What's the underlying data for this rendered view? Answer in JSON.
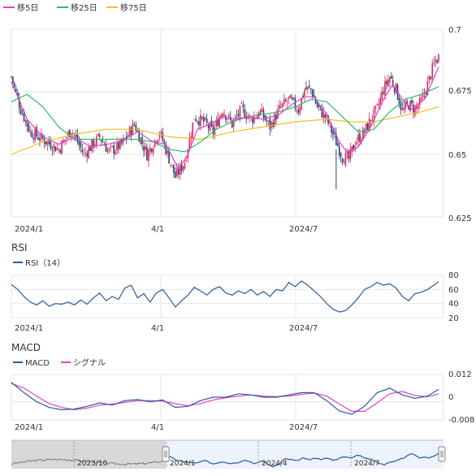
{
  "colors": {
    "up": "#e8245c",
    "down": "#2a3f6e",
    "ma5": "#e040c8",
    "ma25": "#2bbf6a",
    "ma75": "#f0c020",
    "rsi": "#2a5a9e",
    "macd": "#2a5a9e",
    "signal": "#e040c8",
    "grid": "#e6e6e6",
    "navigator_bg": "#d8d8d8",
    "navigator_selected": "#eef2fa"
  },
  "legend": [
    {
      "label": "移5日",
      "color": "#e040c8"
    },
    {
      "label": "移25日",
      "color": "#2bbf6a"
    },
    {
      "label": "移75日",
      "color": "#f0c020"
    }
  ],
  "price": {
    "y_ticks": [
      "0.7",
      "0.675",
      "0.65",
      "0.625"
    ],
    "x_ticks": [
      "2024/1",
      "4/1",
      "2024/7"
    ]
  },
  "rsi": {
    "title": "RSI",
    "legend_label": "RSI（14）",
    "y_ticks": [
      "80",
      "60",
      "40",
      "20"
    ],
    "x_ticks": [
      "2024/1",
      "4/1",
      "2024/7"
    ]
  },
  "macd": {
    "title": "MACD",
    "legend_macd": "MACD",
    "legend_signal": "シグナル",
    "y_ticks": [
      "0.012",
      "0",
      "-0.008"
    ],
    "x_ticks": [
      "2024/1",
      "4/1",
      "2024/7"
    ]
  },
  "navigator": {
    "labels": [
      "2023/10",
      "2024/1",
      "2024/4",
      "2024/7"
    ]
  },
  "chart_data": [
    {
      "type": "candlestick",
      "ylim": [
        0.625,
        0.7
      ],
      "y_ticks": [
        0.7,
        0.675,
        0.65,
        0.625
      ],
      "x_tick_labels": [
        "2024/1",
        "4/1",
        "2024/7"
      ],
      "close_path": [
        [
          0,
          0.681
        ],
        [
          6,
          0.668
        ],
        [
          12,
          0.659
        ],
        [
          20,
          0.656
        ],
        [
          30,
          0.652
        ],
        [
          38,
          0.66
        ],
        [
          46,
          0.65
        ],
        [
          56,
          0.657
        ],
        [
          62,
          0.651
        ],
        [
          70,
          0.654
        ],
        [
          78,
          0.662
        ],
        [
          86,
          0.65
        ],
        [
          94,
          0.659
        ],
        [
          98,
          0.652
        ],
        [
          104,
          0.641
        ],
        [
          110,
          0.647
        ],
        [
          116,
          0.665
        ],
        [
          122,
          0.663
        ],
        [
          128,
          0.659
        ],
        [
          134,
          0.668
        ],
        [
          140,
          0.662
        ],
        [
          146,
          0.668
        ],
        [
          152,
          0.664
        ],
        [
          158,
          0.667
        ],
        [
          164,
          0.661
        ],
        [
          170,
          0.668
        ],
        [
          176,
          0.672
        ],
        [
          182,
          0.668
        ],
        [
          186,
          0.676
        ],
        [
          190,
          0.676
        ],
        [
          194,
          0.669
        ],
        [
          200,
          0.664
        ],
        [
          206,
          0.655
        ],
        [
          210,
          0.649
        ],
        [
          214,
          0.648
        ],
        [
          218,
          0.655
        ],
        [
          224,
          0.659
        ],
        [
          228,
          0.664
        ],
        [
          232,
          0.668
        ],
        [
          236,
          0.676
        ],
        [
          240,
          0.681
        ],
        [
          244,
          0.676
        ],
        [
          248,
          0.667
        ],
        [
          252,
          0.67
        ],
        [
          256,
          0.668
        ],
        [
          260,
          0.671
        ],
        [
          264,
          0.678
        ],
        [
          268,
          0.686
        ],
        [
          271,
          0.689
        ]
      ],
      "ma5_path": [
        [
          0,
          0.679
        ],
        [
          10,
          0.664
        ],
        [
          20,
          0.657
        ],
        [
          30,
          0.654
        ],
        [
          40,
          0.657
        ],
        [
          50,
          0.653
        ],
        [
          60,
          0.654
        ],
        [
          70,
          0.655
        ],
        [
          80,
          0.659
        ],
        [
          90,
          0.655
        ],
        [
          98,
          0.654
        ],
        [
          106,
          0.644
        ],
        [
          112,
          0.65
        ],
        [
          118,
          0.66
        ],
        [
          126,
          0.662
        ],
        [
          134,
          0.665
        ],
        [
          142,
          0.664
        ],
        [
          150,
          0.665
        ],
        [
          160,
          0.664
        ],
        [
          170,
          0.666
        ],
        [
          178,
          0.67
        ],
        [
          186,
          0.673
        ],
        [
          192,
          0.673
        ],
        [
          200,
          0.666
        ],
        [
          208,
          0.655
        ],
        [
          214,
          0.65
        ],
        [
          220,
          0.653
        ],
        [
          228,
          0.661
        ],
        [
          236,
          0.672
        ],
        [
          242,
          0.678
        ],
        [
          248,
          0.672
        ],
        [
          254,
          0.668
        ],
        [
          262,
          0.672
        ],
        [
          271,
          0.685
        ]
      ],
      "ma25_path": [
        [
          0,
          0.671
        ],
        [
          10,
          0.674
        ],
        [
          20,
          0.669
        ],
        [
          30,
          0.661
        ],
        [
          40,
          0.656
        ],
        [
          50,
          0.656
        ],
        [
          60,
          0.656
        ],
        [
          70,
          0.656
        ],
        [
          80,
          0.656
        ],
        [
          90,
          0.655
        ],
        [
          100,
          0.652
        ],
        [
          110,
          0.651
        ],
        [
          120,
          0.655
        ],
        [
          130,
          0.66
        ],
        [
          140,
          0.663
        ],
        [
          150,
          0.665
        ],
        [
          160,
          0.666
        ],
        [
          170,
          0.667
        ],
        [
          180,
          0.669
        ],
        [
          190,
          0.672
        ],
        [
          200,
          0.671
        ],
        [
          210,
          0.665
        ],
        [
          220,
          0.659
        ],
        [
          230,
          0.66
        ],
        [
          240,
          0.667
        ],
        [
          250,
          0.672
        ],
        [
          260,
          0.674
        ],
        [
          271,
          0.677
        ]
      ],
      "ma75_path": [
        [
          0,
          0.65
        ],
        [
          20,
          0.655
        ],
        [
          40,
          0.658
        ],
        [
          60,
          0.66
        ],
        [
          80,
          0.66
        ],
        [
          100,
          0.657
        ],
        [
          120,
          0.656
        ],
        [
          140,
          0.659
        ],
        [
          160,
          0.661
        ],
        [
          180,
          0.663
        ],
        [
          200,
          0.664
        ],
        [
          215,
          0.663
        ],
        [
          230,
          0.663
        ],
        [
          245,
          0.665
        ],
        [
          260,
          0.667
        ],
        [
          271,
          0.669
        ]
      ]
    },
    {
      "type": "line",
      "ylim": [
        20,
        80
      ],
      "y_ticks": [
        80,
        60,
        40,
        20
      ],
      "x_tick_labels": [
        "2024/1",
        "4/1",
        "2024/7"
      ],
      "series": [
        {
          "name": "RSI（14）",
          "values": [
            [
              0,
              67
            ],
            [
              4,
              60
            ],
            [
              8,
              50
            ],
            [
              12,
              42
            ],
            [
              16,
              38
            ],
            [
              20,
              44
            ],
            [
              24,
              36
            ],
            [
              28,
              40
            ],
            [
              32,
              39
            ],
            [
              36,
              42
            ],
            [
              40,
              38
            ],
            [
              44,
              45
            ],
            [
              48,
              39
            ],
            [
              52,
              48
            ],
            [
              56,
              55
            ],
            [
              60,
              44
            ],
            [
              64,
              50
            ],
            [
              68,
              46
            ],
            [
              72,
              62
            ],
            [
              76,
              66
            ],
            [
              80,
              48
            ],
            [
              84,
              54
            ],
            [
              88,
              42
            ],
            [
              92,
              55
            ],
            [
              96,
              60
            ],
            [
              100,
              48
            ],
            [
              104,
              35
            ],
            [
              108,
              44
            ],
            [
              112,
              52
            ],
            [
              116,
              63
            ],
            [
              120,
              58
            ],
            [
              124,
              52
            ],
            [
              128,
              60
            ],
            [
              132,
              64
            ],
            [
              136,
              55
            ],
            [
              140,
              52
            ],
            [
              144,
              58
            ],
            [
              148,
              54
            ],
            [
              152,
              60
            ],
            [
              156,
              52
            ],
            [
              160,
              57
            ],
            [
              164,
              50
            ],
            [
              168,
              60
            ],
            [
              172,
              58
            ],
            [
              176,
              70
            ],
            [
              180,
              64
            ],
            [
              184,
              72
            ],
            [
              188,
              66
            ],
            [
              192,
              58
            ],
            [
              196,
              50
            ],
            [
              200,
              40
            ],
            [
              204,
              32
            ],
            [
              208,
              28
            ],
            [
              212,
              30
            ],
            [
              216,
              38
            ],
            [
              220,
              48
            ],
            [
              224,
              60
            ],
            [
              228,
              64
            ],
            [
              232,
              70
            ],
            [
              236,
              66
            ],
            [
              240,
              68
            ],
            [
              244,
              62
            ],
            [
              248,
              50
            ],
            [
              252,
              44
            ],
            [
              256,
              54
            ],
            [
              260,
              56
            ],
            [
              264,
              60
            ],
            [
              268,
              66
            ],
            [
              271,
              71
            ]
          ]
        }
      ]
    },
    {
      "type": "line",
      "ylim": [
        -0.008,
        0.012
      ],
      "y_ticks": [
        0.012,
        0,
        -0.008
      ],
      "x_tick_labels": [
        "2024/1",
        "4/1",
        "2024/7"
      ],
      "series": [
        {
          "name": "MACD",
          "values": [
            [
              0,
              0.0085
            ],
            [
              8,
              0.004
            ],
            [
              16,
              0.0
            ],
            [
              24,
              -0.0025
            ],
            [
              32,
              -0.0035
            ],
            [
              40,
              -0.0032
            ],
            [
              48,
              -0.002
            ],
            [
              56,
              -0.0005
            ],
            [
              64,
              -0.0015
            ],
            [
              72,
              0.0005
            ],
            [
              80,
              0.001
            ],
            [
              88,
              -0.0
            ],
            [
              96,
              0.0008
            ],
            [
              104,
              -0.0025
            ],
            [
              112,
              -0.002
            ],
            [
              120,
              0.0005
            ],
            [
              128,
              0.002
            ],
            [
              136,
              0.002
            ],
            [
              144,
              0.0035
            ],
            [
              152,
              0.003
            ],
            [
              160,
              0.002
            ],
            [
              168,
              0.002
            ],
            [
              176,
              0.003
            ],
            [
              184,
              0.004
            ],
            [
              192,
              0.004
            ],
            [
              200,
              0.0005
            ],
            [
              208,
              -0.004
            ],
            [
              216,
              -0.0055
            ],
            [
              224,
              -0.002
            ],
            [
              232,
              0.004
            ],
            [
              240,
              0.006
            ],
            [
              248,
              0.003
            ],
            [
              256,
              0.0015
            ],
            [
              264,
              0.0025
            ],
            [
              271,
              0.0055
            ]
          ]
        },
        {
          "name": "シグナル",
          "values": [
            [
              0,
              0.008
            ],
            [
              8,
              0.006
            ],
            [
              16,
              0.0025
            ],
            [
              24,
              -0.0008
            ],
            [
              32,
              -0.0025
            ],
            [
              40,
              -0.0035
            ],
            [
              48,
              -0.0028
            ],
            [
              56,
              -0.0015
            ],
            [
              64,
              -0.001
            ],
            [
              72,
              -0.0003
            ],
            [
              80,
              0.0005
            ],
            [
              88,
              0.0005
            ],
            [
              96,
              0.0003
            ],
            [
              104,
              -0.0008
            ],
            [
              112,
              -0.0018
            ],
            [
              120,
              -0.0008
            ],
            [
              128,
              0.0008
            ],
            [
              136,
              0.0018
            ],
            [
              144,
              0.0025
            ],
            [
              152,
              0.003
            ],
            [
              160,
              0.0025
            ],
            [
              168,
              0.0022
            ],
            [
              176,
              0.0025
            ],
            [
              184,
              0.0033
            ],
            [
              192,
              0.0038
            ],
            [
              200,
              0.0025
            ],
            [
              208,
              -0.001
            ],
            [
              216,
              -0.0042
            ],
            [
              224,
              -0.0042
            ],
            [
              232,
              -0.0005
            ],
            [
              240,
              0.0035
            ],
            [
              248,
              0.0045
            ],
            [
              256,
              0.0028
            ],
            [
              264,
              0.0022
            ],
            [
              271,
              0.0035
            ]
          ]
        }
      ]
    }
  ]
}
